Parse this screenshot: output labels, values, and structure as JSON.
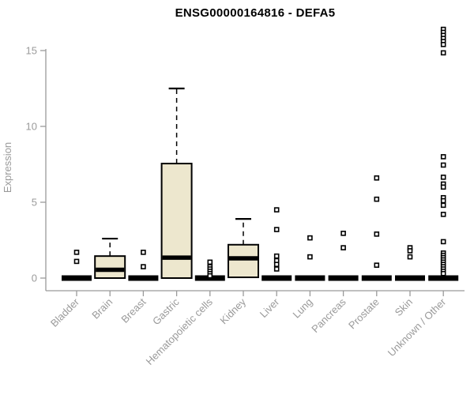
{
  "colors": {
    "box_fill": "#EDE7CE",
    "box_border": "#000000",
    "axis": "#9A9A9A",
    "title": "#000000",
    "background": "#FFFFFF"
  },
  "chart_data": {
    "type": "boxplot",
    "title": "ENSG00000164816 - DEFA5",
    "xlabel": "",
    "ylabel": "Expression",
    "ylim": [
      0,
      16.5
    ],
    "yticks": [
      0,
      5,
      10,
      15
    ],
    "grid": false,
    "legend": "none",
    "categories": [
      "Bladder",
      "Brain",
      "Breast",
      "Gastric",
      "Hematopoietic cells",
      "Kidney",
      "Liver",
      "Lung",
      "Pancreas",
      "Prostate",
      "Skin",
      "Unknown / Other"
    ],
    "series": [
      {
        "name": "Bladder",
        "collapsed": true,
        "median": 0,
        "outliers": [
          1.7,
          1.1
        ]
      },
      {
        "name": "Brain",
        "collapsed": false,
        "q1": 0,
        "median": 0.55,
        "q3": 1.45,
        "whisker_high": 2.6,
        "outliers": []
      },
      {
        "name": "Breast",
        "collapsed": true,
        "median": 0,
        "outliers": [
          1.7,
          0.75
        ]
      },
      {
        "name": "Gastric",
        "collapsed": false,
        "q1": 0,
        "median": 1.35,
        "q3": 7.55,
        "whisker_high": 12.5,
        "outliers": []
      },
      {
        "name": "Hematopoietic cells",
        "collapsed": true,
        "median": 0,
        "outliers": [
          1.05,
          0.75,
          0.6,
          0.45,
          0.3,
          0.15
        ]
      },
      {
        "name": "Kidney",
        "collapsed": false,
        "q1": 0.05,
        "median": 1.3,
        "q3": 2.2,
        "whisker_high": 3.9,
        "outliers": []
      },
      {
        "name": "Liver",
        "collapsed": true,
        "median": 0,
        "outliers": [
          4.5,
          3.2,
          1.45,
          1.15,
          0.9,
          0.6
        ]
      },
      {
        "name": "Lung",
        "collapsed": true,
        "median": 0,
        "outliers": [
          2.65,
          1.4
        ]
      },
      {
        "name": "Pancreas",
        "collapsed": true,
        "median": 0,
        "outliers": [
          2.95,
          2.0
        ]
      },
      {
        "name": "Prostate",
        "collapsed": true,
        "median": 0,
        "outliers": [
          6.6,
          5.2,
          2.9,
          0.85
        ]
      },
      {
        "name": "Skin",
        "collapsed": true,
        "median": 0,
        "outliers": [
          2.0,
          1.8,
          1.4
        ]
      },
      {
        "name": "Unknown / Other",
        "collapsed": true,
        "median": 0,
        "outliers": [
          16.4,
          16.2,
          16.0,
          15.8,
          15.6,
          15.4,
          14.85,
          8.0,
          7.45,
          6.65,
          6.2,
          6.0,
          5.3,
          5.1,
          4.8,
          4.2,
          2.4,
          1.65,
          1.5,
          1.35,
          1.2,
          1.05,
          0.9,
          0.75,
          0.6,
          0.45,
          0.3
        ]
      }
    ]
  }
}
